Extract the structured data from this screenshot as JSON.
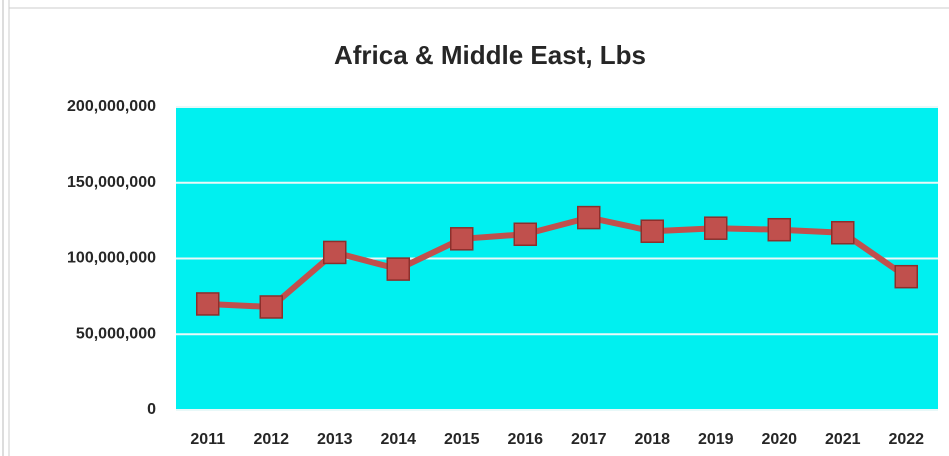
{
  "chart_data": {
    "type": "line",
    "title": "Africa &  Middle East, Lbs",
    "categories": [
      "2011",
      "2012",
      "2013",
      "2014",
      "2015",
      "2016",
      "2017",
      "2018",
      "2019",
      "2020",
      "2021",
      "2022"
    ],
    "values": [
      70000000,
      68000000,
      104000000,
      93000000,
      113000000,
      116000000,
      127000000,
      118000000,
      120000000,
      119000000,
      117000000,
      88000000
    ],
    "color": "#c0504d",
    "ylim": [
      0,
      200000000
    ],
    "yticks": [
      0,
      {
        "value": 50000000,
        "label": "50,000,000"
      },
      {
        "value": 100000000,
        "label": "100,000,000"
      },
      {
        "value": 150000000,
        "label": "150,000,000"
      },
      {
        "value": 200000000,
        "label": "200,000,000"
      }
    ],
    "grid": true
  }
}
